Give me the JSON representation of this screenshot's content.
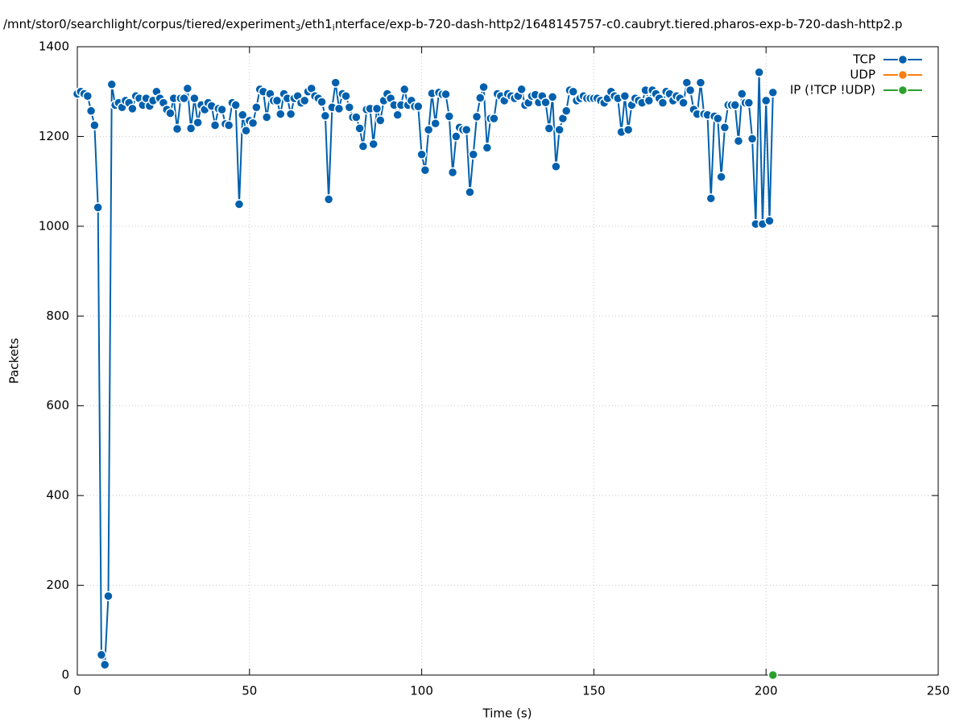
{
  "chart_data": {
    "type": "line",
    "title_parts": [
      "/mnt/stor0/searchlight/corpus/tiered/experiment",
      "3",
      "/eth1",
      "i",
      "nterface/exp-b-720-dash-http2/1648145757-c0.caubryt.tiered.pharos-exp-b-720-dash-http2.p"
    ],
    "x_label": "Time (s)",
    "y_label": "Packets",
    "xlim": [
      0,
      250
    ],
    "xticks": [
      0,
      50,
      100,
      150,
      200,
      250
    ],
    "ylim": [
      0,
      1400
    ],
    "yticks": [
      0,
      200,
      400,
      600,
      800,
      1000,
      1200,
      1400
    ],
    "grid": true,
    "legend": "top-right",
    "series": [
      {
        "name": "TCP",
        "color": "#0060ad",
        "x": [
          0,
          1,
          2,
          3,
          4,
          5,
          6,
          7,
          8,
          9,
          10,
          11,
          12,
          13,
          14,
          15,
          16,
          17,
          18,
          19,
          20,
          21,
          22,
          23,
          24,
          25,
          26,
          27,
          28,
          29,
          30,
          31,
          32,
          33,
          34,
          35,
          36,
          37,
          38,
          39,
          40,
          41,
          42,
          43,
          44,
          45,
          46,
          47,
          48,
          49,
          50,
          51,
          52,
          53,
          54,
          55,
          56,
          57,
          58,
          59,
          60,
          61,
          62,
          63,
          64,
          65,
          66,
          67,
          68,
          69,
          70,
          71,
          72,
          73,
          74,
          75,
          76,
          77,
          78,
          79,
          80,
          81,
          82,
          83,
          84,
          85,
          86,
          87,
          88,
          89,
          90,
          91,
          92,
          93,
          94,
          95,
          96,
          97,
          98,
          99,
          100,
          101,
          102,
          103,
          104,
          105,
          106,
          107,
          108,
          109,
          110,
          111,
          112,
          113,
          114,
          115,
          116,
          117,
          118,
          119,
          120,
          121,
          122,
          123,
          124,
          125,
          126,
          127,
          128,
          129,
          130,
          131,
          132,
          133,
          134,
          135,
          136,
          137,
          138,
          139,
          140,
          141,
          142,
          143,
          144,
          145,
          146,
          147,
          148,
          149,
          150,
          151,
          152,
          153,
          154,
          155,
          156,
          157,
          158,
          159,
          160,
          161,
          162,
          163,
          164,
          165,
          166,
          167,
          168,
          169,
          170,
          171,
          172,
          173,
          174,
          175,
          176,
          177,
          178,
          179,
          180,
          181,
          182,
          183,
          184,
          185,
          186,
          187,
          188,
          189,
          190,
          191,
          192,
          193,
          194,
          195,
          196,
          197,
          198,
          199,
          200,
          201,
          202
        ],
        "values": [
          1295,
          1300,
          1295,
          1290,
          1257,
          1225,
          1042,
          45,
          23,
          176,
          1316,
          1270,
          1275,
          1265,
          1280,
          1275,
          1262,
          1290,
          1285,
          1270,
          1285,
          1268,
          1280,
          1300,
          1285,
          1275,
          1260,
          1252,
          1285,
          1217,
          1285,
          1285,
          1307,
          1218,
          1285,
          1231,
          1270,
          1260,
          1275,
          1268,
          1225,
          1262,
          1260,
          1228,
          1225,
          1275,
          1270,
          1049,
          1248,
          1213,
          1235,
          1230,
          1265,
          1305,
          1300,
          1243,
          1295,
          1280,
          1280,
          1250,
          1295,
          1285,
          1250,
          1285,
          1290,
          1275,
          1280,
          1300,
          1307,
          1290,
          1285,
          1277,
          1246,
          1060,
          1265,
          1320,
          1262,
          1295,
          1290,
          1265,
          1243,
          1243,
          1218,
          1178,
          1260,
          1262,
          1183,
          1262,
          1236,
          1280,
          1295,
          1285,
          1270,
          1248,
          1270,
          1305,
          1270,
          1280,
          1267,
          1267,
          1160,
          1125,
          1215,
          1296,
          1229,
          1298,
          1294,
          1294,
          1245,
          1120,
          1200,
          1220,
          1215,
          1215,
          1076,
          1160,
          1244,
          1286,
          1310,
          1175,
          1240,
          1240,
          1295,
          1290,
          1280,
          1295,
          1290,
          1285,
          1290,
          1305,
          1270,
          1275,
          1290,
          1293,
          1276,
          1290,
          1276,
          1218,
          1288,
          1133,
          1215,
          1240,
          1257,
          1303,
          1300,
          1280,
          1285,
          1290,
          1285,
          1285,
          1285,
          1285,
          1280,
          1275,
          1285,
          1300,
          1290,
          1285,
          1210,
          1290,
          1215,
          1270,
          1285,
          1280,
          1275,
          1303,
          1280,
          1303,
          1295,
          1285,
          1275,
          1300,
          1295,
          1280,
          1290,
          1285,
          1275,
          1320,
          1303,
          1260,
          1250,
          1320,
          1250,
          1248,
          1062,
          1245,
          1240,
          1110,
          1220,
          1270,
          1270,
          1270,
          1190,
          1295,
          1275,
          1275,
          1195,
          1005,
          1343,
          1005,
          1280,
          1012,
          1298
        ]
      },
      {
        "name": "UDP",
        "color": "#ff7f0e",
        "x": [],
        "values": []
      },
      {
        "name": "IP (!TCP  !UDP)",
        "color": "#2ca02c",
        "x": [
          202
        ],
        "values": [
          0
        ]
      }
    ]
  }
}
